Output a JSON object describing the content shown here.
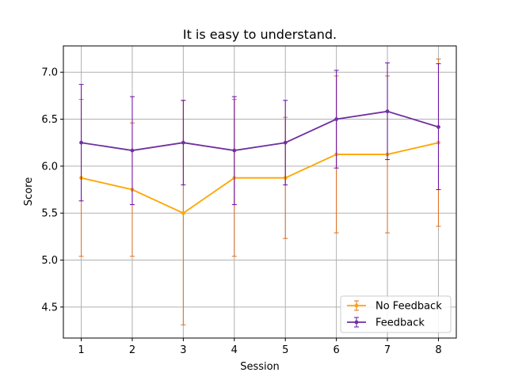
{
  "chart_data": {
    "type": "line",
    "title": "It is easy to understand.",
    "xlabel": "Session",
    "ylabel": "Score",
    "x": [
      1,
      2,
      3,
      4,
      5,
      6,
      7,
      8
    ],
    "xlim": [
      0.65,
      8.35
    ],
    "ylim": [
      4.17,
      7.28
    ],
    "yticks": [
      4.5,
      5.0,
      5.5,
      6.0,
      6.5,
      7.0
    ],
    "ytick_labels": [
      "4.5",
      "5.0",
      "5.5",
      "6.0",
      "6.5",
      "7.0"
    ],
    "xtick_labels": [
      "1",
      "2",
      "3",
      "4",
      "5",
      "6",
      "7",
      "8"
    ],
    "grid": true,
    "legend_position": "lower-right",
    "series": [
      {
        "name": "No Feedback",
        "color": "#FFA500",
        "errorbar_color": "#E07020",
        "values": [
          5.875,
          5.75,
          5.5,
          5.875,
          5.875,
          6.125,
          6.125,
          6.25
        ],
        "err_low": [
          5.04,
          5.04,
          4.31,
          5.04,
          5.23,
          5.29,
          5.29,
          5.36
        ],
        "err_high": [
          6.71,
          6.46,
          6.7,
          6.71,
          6.52,
          6.96,
          6.96,
          7.14
        ]
      },
      {
        "name": "Feedback",
        "color": "#7030A0",
        "errorbar_color": "#6A0DAD",
        "values": [
          6.25,
          6.167,
          6.25,
          6.167,
          6.25,
          6.5,
          6.583,
          6.417
        ],
        "err_low": [
          5.63,
          5.59,
          5.8,
          5.59,
          5.8,
          5.98,
          6.07,
          5.75
        ],
        "err_high": [
          6.87,
          6.74,
          6.7,
          6.74,
          6.7,
          7.02,
          7.1,
          7.09
        ]
      }
    ]
  }
}
